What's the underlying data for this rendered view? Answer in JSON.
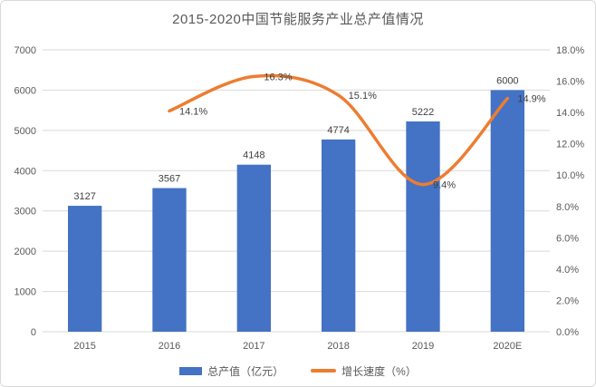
{
  "chart_data": {
    "type": "bar+line",
    "title": "2015-2020中国节能服务产业总产值情况",
    "categories": [
      "2015",
      "2016",
      "2017",
      "2018",
      "2019",
      "2020E"
    ],
    "series": [
      {
        "name": "总产值（亿元）",
        "type": "bar",
        "axis": "left",
        "color": "#4472C4",
        "values": [
          3127,
          3567,
          4148,
          4774,
          5222,
          6000
        ],
        "data_labels": [
          "3127",
          "3567",
          "4148",
          "4774",
          "5222",
          "6000"
        ]
      },
      {
        "name": "增长速度（%）",
        "type": "line",
        "axis": "right",
        "color": "#ED7D31",
        "smooth": true,
        "values": [
          null,
          14.1,
          16.3,
          15.1,
          9.4,
          14.9
        ],
        "data_labels": [
          "",
          "14.1%",
          "16.3%",
          "15.1%",
          "9.4%",
          "14.9%"
        ]
      }
    ],
    "left_axis": {
      "min": 0,
      "max": 7000,
      "step": 1000,
      "ticks": [
        "0",
        "1000",
        "2000",
        "3000",
        "4000",
        "5000",
        "6000",
        "7000"
      ]
    },
    "right_axis": {
      "min": 0,
      "max": 18,
      "step": 2,
      "ticks": [
        "0.0%",
        "2.0%",
        "4.0%",
        "6.0%",
        "8.0%",
        "10.0%",
        "12.0%",
        "14.0%",
        "16.0%",
        "18.0%"
      ]
    },
    "legend": {
      "position": "bottom",
      "items": [
        {
          "label": "总产值（亿元）",
          "marker": "bar",
          "color": "#4472C4"
        },
        {
          "label": "增长速度（%）",
          "marker": "line",
          "color": "#ED7D31"
        }
      ]
    },
    "grid": true,
    "colors": {
      "grid": "#D9D9D9",
      "border": "#D9D9D9",
      "axis_text": "#595959",
      "data_label": "#404040",
      "title": "#595959",
      "background": "#FFFFFF"
    }
  }
}
